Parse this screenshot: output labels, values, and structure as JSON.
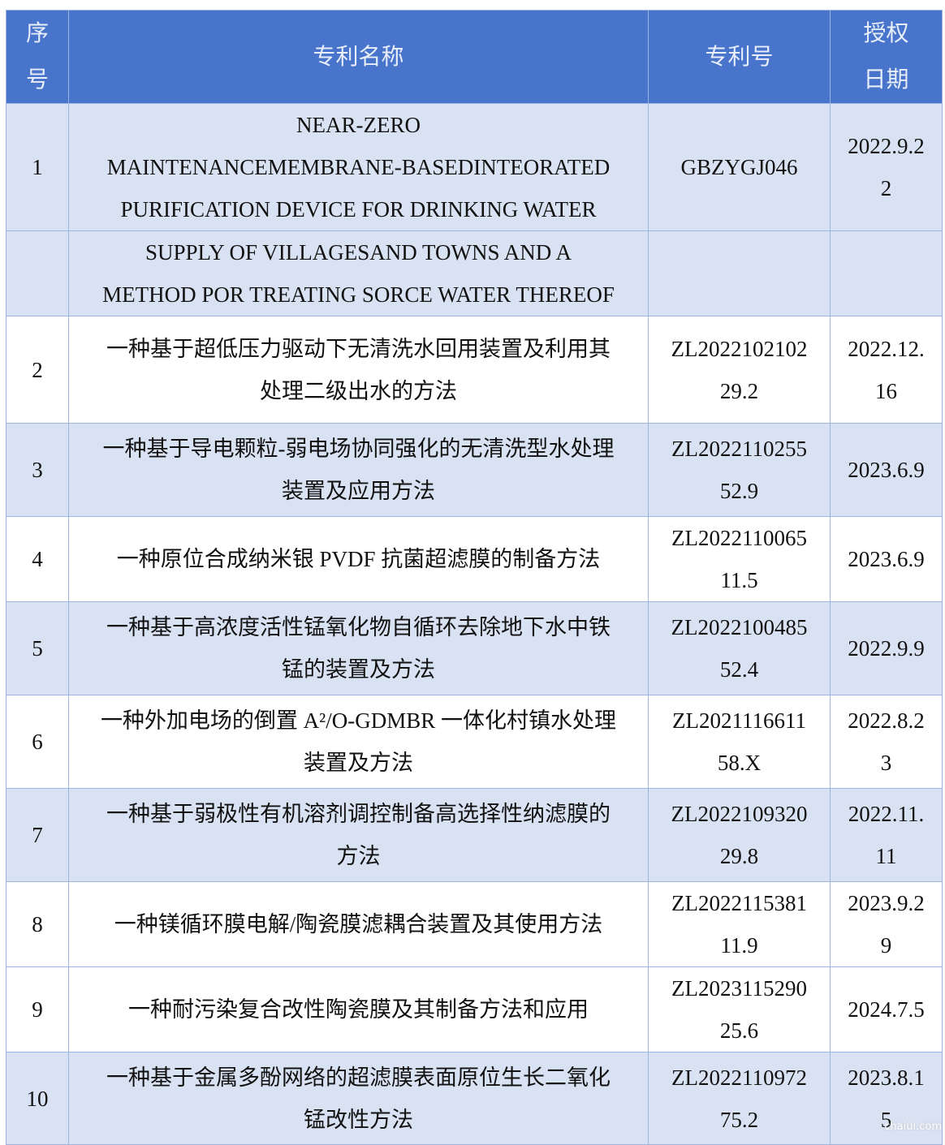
{
  "colors": {
    "header_bg": "#4874cb",
    "row_shade": "#d9e2f3",
    "border": "#9db4e3"
  },
  "header": [
    [
      "序",
      "号"
    ],
    [
      "专利名称"
    ],
    [
      "专利号"
    ],
    [
      "授权",
      "日期"
    ]
  ],
  "rows": [
    {
      "h": 150,
      "shade": true,
      "cells": [
        [
          "1"
        ],
        [
          "NEAR-ZERO",
          "MAINTENANCEMEMBRANE-BASEDINTEORATED",
          "PURIFICATION DEVICE FOR DRINKING WATER"
        ],
        [
          "GBZYGJ046"
        ],
        [
          "2022.9.2",
          "2"
        ]
      ]
    },
    {
      "h": 101,
      "shade": true,
      "cells": [
        [],
        [
          "SUPPLY OF VILLAGESAND TOWNS AND A",
          "METHOD POR TREATING SORCE WATER THEREOF"
        ],
        [],
        []
      ]
    },
    {
      "h": 132,
      "shade": false,
      "cells": [
        [
          "2"
        ],
        [
          "一种基于超低压力驱动下无清洗水回用装置及利用其",
          "处理二级出水的方法"
        ],
        [
          "ZL2022102102",
          "29.2"
        ],
        [
          "2022.12.",
          "16"
        ]
      ]
    },
    {
      "h": 115,
      "shade": true,
      "cells": [
        [
          "3"
        ],
        [
          "一种基于导电颗粒-弱电场协同强化的无清洗型水处理",
          "装置及应用方法"
        ],
        [
          "ZL2022110255",
          "52.9"
        ],
        [
          "2023.6.9"
        ]
      ]
    },
    {
      "h": 102,
      "shade": false,
      "cells": [
        [
          "4"
        ],
        [
          "一种原位合成纳米银 PVDF 抗菌超滤膜的制备方法"
        ],
        [
          "ZL2022110065",
          "11.5"
        ],
        [
          "2023.6.9"
        ]
      ]
    },
    {
      "h": 115,
      "shade": true,
      "cells": [
        [
          "5"
        ],
        [
          "一种基于高浓度活性锰氧化物自循环去除地下水中铁",
          "锰的装置及方法"
        ],
        [
          "ZL2022100485",
          "52.4"
        ],
        [
          "2022.9.9"
        ]
      ]
    },
    {
      "h": 115,
      "shade": false,
      "cells": [
        [
          "6"
        ],
        [
          "一种外加电场的倒置 A²/O-GDMBR 一体化村镇水处理",
          "装置及方法"
        ],
        [
          "ZL2021116611",
          "58.X"
        ],
        [
          "2022.8.2",
          "3"
        ]
      ]
    },
    {
      "h": 115,
      "shade": true,
      "cells": [
        [
          "7"
        ],
        [
          "一种基于弱极性有机溶剂调控制备高选择性纳滤膜的",
          "方法"
        ],
        [
          "ZL2022109320",
          "29.8"
        ],
        [
          "2022.11.",
          "11"
        ]
      ]
    },
    {
      "h": 102,
      "shade": false,
      "cells": [
        [
          "8"
        ],
        [
          "一种镁循环膜电解/陶瓷膜滤耦合装置及其使用方法"
        ],
        [
          "ZL2022115381",
          "11.9"
        ],
        [
          "2023.9.2",
          "9"
        ]
      ]
    },
    {
      "h": 102,
      "shade": false,
      "cells": [
        [
          "9"
        ],
        [
          "一种耐污染复合改性陶瓷膜及其制备方法和应用"
        ],
        [
          "ZL2023115290",
          "25.6"
        ],
        [
          "2024.7.5"
        ]
      ]
    },
    {
      "h": 114,
      "shade": true,
      "cells": [
        [
          "10"
        ],
        [
          "一种基于金属多酚网络的超滤膜表面原位生长二氧化",
          "锰改性方法"
        ],
        [
          "ZL2022110972",
          "75.2"
        ],
        [
          "2023.8.1",
          "5"
        ]
      ]
    }
  ],
  "watermark": "chaiui.com"
}
